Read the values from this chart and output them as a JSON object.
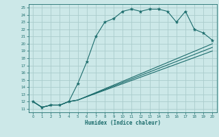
{
  "title": "",
  "xlabel": "Humidex (Indice chaleur)",
  "bg_color": "#cce8e8",
  "grid_color": "#aacccc",
  "line_color": "#1a6b6b",
  "xlim": [
    -0.5,
    20.5
  ],
  "ylim": [
    10.5,
    25.5
  ],
  "xticks": [
    0,
    1,
    2,
    3,
    4,
    5,
    6,
    7,
    8,
    9,
    10,
    11,
    12,
    13,
    14,
    15,
    16,
    17,
    18,
    19,
    20
  ],
  "yticks": [
    11,
    12,
    13,
    14,
    15,
    16,
    17,
    18,
    19,
    20,
    21,
    22,
    23,
    24,
    25
  ],
  "line1_x": [
    0,
    1,
    2,
    3,
    4,
    5,
    6,
    7,
    8,
    9,
    10,
    11,
    12,
    13,
    14,
    15,
    16,
    17,
    18,
    19,
    20
  ],
  "line1_y": [
    12,
    11.2,
    11.5,
    11.5,
    12,
    14.5,
    17.5,
    21,
    23,
    23.5,
    24.5,
    24.8,
    24.5,
    24.8,
    24.8,
    24.5,
    23,
    24.5,
    22,
    21.5,
    20.5
  ],
  "line2_x": [
    0,
    1,
    2,
    3,
    4,
    5,
    20
  ],
  "line2_y": [
    12,
    11.2,
    11.5,
    11.5,
    12.0,
    12.2,
    20.0
  ],
  "line3_x": [
    0,
    1,
    2,
    3,
    4,
    5,
    20
  ],
  "line3_y": [
    12,
    11.2,
    11.5,
    11.5,
    12.0,
    12.2,
    19.5
  ],
  "line4_x": [
    0,
    1,
    2,
    3,
    4,
    5,
    20
  ],
  "line4_y": [
    12,
    11.2,
    11.5,
    11.5,
    12.0,
    12.2,
    19.0
  ]
}
